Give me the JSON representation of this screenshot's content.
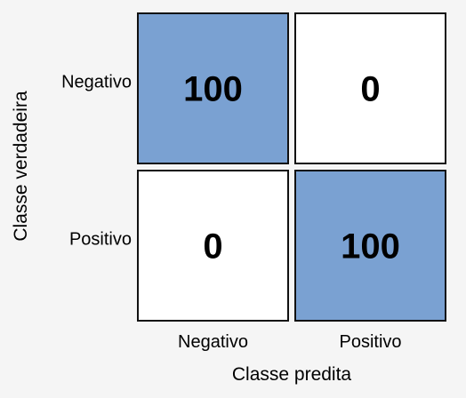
{
  "chart_data": {
    "type": "heatmap",
    "title": "",
    "xlabel": "Classe predita",
    "ylabel": "Classe verdadeira",
    "x_categories": [
      "Negativo",
      "Positivo"
    ],
    "y_categories": [
      "Negativo",
      "Positivo"
    ],
    "values": [
      [
        100,
        0
      ],
      [
        0,
        100
      ]
    ],
    "colors": {
      "high": "#7aa1d2",
      "low": "#ffffff"
    }
  }
}
